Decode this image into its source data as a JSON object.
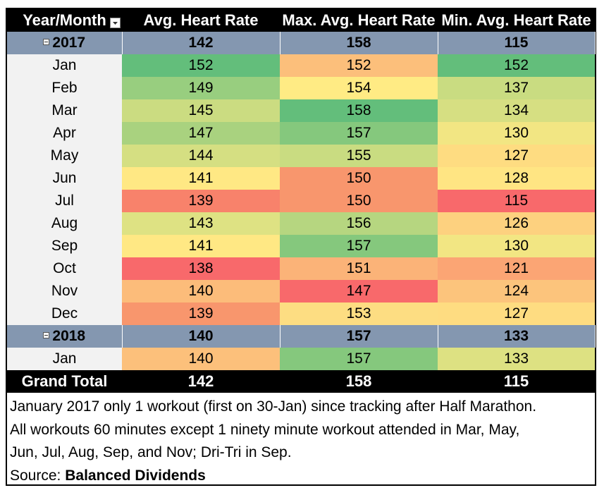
{
  "chart_data": {
    "type": "table",
    "columns": [
      "Year/Month",
      "Avg. Heart Rate",
      "Max. Avg. Heart Rate",
      "Min. Avg. Heart Rate"
    ],
    "rows": [
      {
        "kind": "year",
        "label": "2017",
        "values": [
          142,
          158,
          115
        ],
        "colors": [
          "#8497b0",
          "#8497b0",
          "#8497b0"
        ]
      },
      {
        "kind": "month",
        "label": "Jan",
        "values": [
          152,
          152,
          152
        ],
        "colors": [
          "#63be7b",
          "#fcbf7b",
          "#63be7b"
        ]
      },
      {
        "kind": "month",
        "label": "Feb",
        "values": [
          149,
          154,
          137
        ],
        "colors": [
          "#98ce7f",
          "#ffeb84",
          "#c9dc81"
        ]
      },
      {
        "kind": "month",
        "label": "Mar",
        "values": [
          145,
          158,
          134
        ],
        "colors": [
          "#cbdc81",
          "#63be7b",
          "#d6df82"
        ]
      },
      {
        "kind": "month",
        "label": "Apr",
        "values": [
          147,
          157,
          130
        ],
        "colors": [
          "#a9d27f",
          "#85c87d",
          "#f2e683"
        ]
      },
      {
        "kind": "month",
        "label": "May",
        "values": [
          144,
          155,
          127
        ],
        "colors": [
          "#d5df82",
          "#c9dc81",
          "#fedc81"
        ]
      },
      {
        "kind": "month",
        "label": "Jun",
        "values": [
          141,
          150,
          128
        ],
        "colors": [
          "#ffe884",
          "#f8966d",
          "#ffe583"
        ]
      },
      {
        "kind": "month",
        "label": "Jul",
        "values": [
          139,
          150,
          115
        ],
        "colors": [
          "#f8826b",
          "#f8966d",
          "#f8696b"
        ]
      },
      {
        "kind": "month",
        "label": "Aug",
        "values": [
          143,
          156,
          126
        ],
        "colors": [
          "#dee283",
          "#b6d680",
          "#fdd17f"
        ]
      },
      {
        "kind": "month",
        "label": "Sep",
        "values": [
          141,
          157,
          130
        ],
        "colors": [
          "#ffe884",
          "#85c87d",
          "#f2e683"
        ]
      },
      {
        "kind": "month",
        "label": "Oct",
        "values": [
          138,
          151,
          121
        ],
        "colors": [
          "#f8696b",
          "#fbb378",
          "#fba574"
        ]
      },
      {
        "kind": "month",
        "label": "Nov",
        "values": [
          140,
          147,
          124
        ],
        "colors": [
          "#fcbc7a",
          "#f8696b",
          "#fcc47c"
        ]
      },
      {
        "kind": "month",
        "label": "Dec",
        "values": [
          139,
          153,
          127
        ],
        "colors": [
          "#f8966d",
          "#fddd82",
          "#fedc81"
        ]
      },
      {
        "kind": "year",
        "label": "2018",
        "values": [
          140,
          157,
          133
        ],
        "colors": [
          "#8497b0",
          "#8497b0",
          "#8497b0"
        ]
      },
      {
        "kind": "month",
        "label": "Jan",
        "values": [
          140,
          157,
          133
        ],
        "colors": [
          "#fcc07b",
          "#85c87d",
          "#dde182"
        ]
      }
    ],
    "grand_total": {
      "label": "Grand Total",
      "values": [
        142,
        158,
        115
      ]
    }
  },
  "notes": {
    "line1": "January 2017 only 1 workout (first on 30-Jan) since tracking after Half Marathon.",
    "line2": "All workouts 60 minutes except 1 ninety minute workout attended in Mar, May,",
    "line3": "Jun, Jul, Aug, Sep, and Nov; Dri-Tri in Sep.",
    "source_prefix": "Source: ",
    "source_name": "Balanced Dividends"
  },
  "icons": {
    "filter": "filter-dropdown-icon",
    "collapse": "collapse-minus-icon"
  }
}
